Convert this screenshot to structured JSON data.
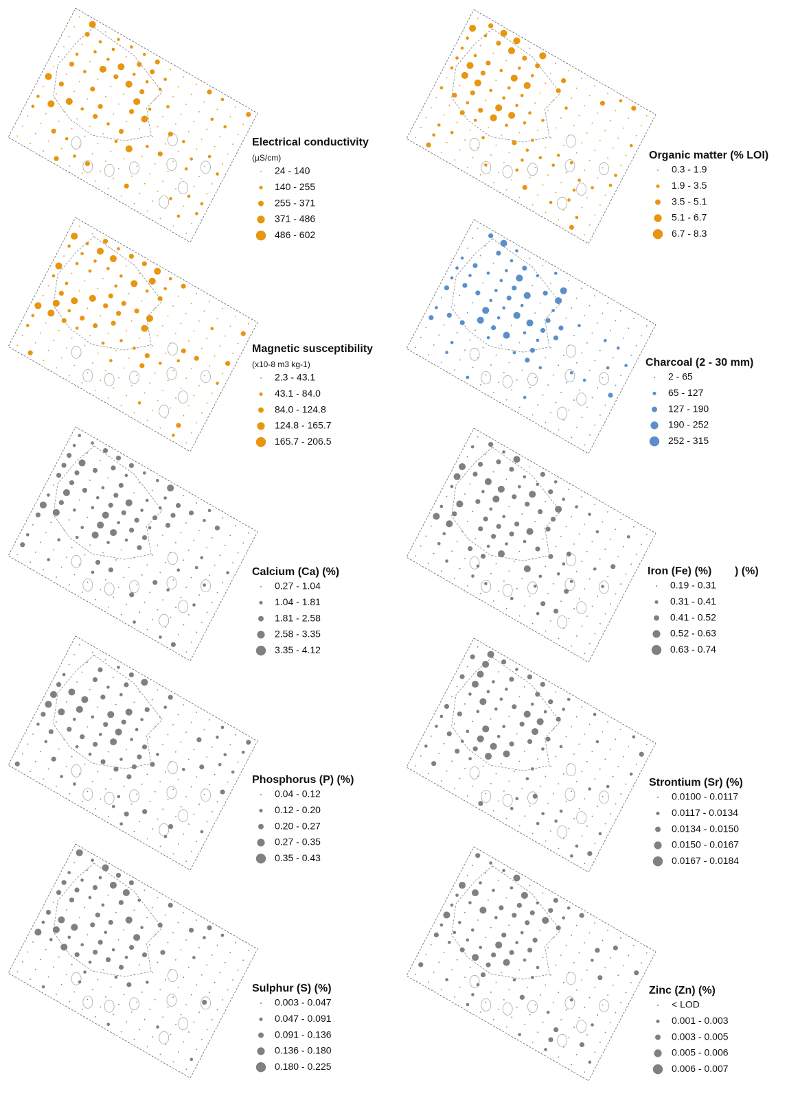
{
  "panels": [
    {
      "title": "Electrical conductivity",
      "unit": "(µS/cm)",
      "color": "#e8950f",
      "classes": [
        "24 - 140",
        "140 - 255",
        "255 - 371",
        "371 - 486",
        "486 - 602"
      ]
    },
    {
      "title": "Organic matter (% LOI)",
      "color": "#e8950f",
      "classes": [
        "0.3 - 1.9",
        "1.9 - 3.5",
        "3.5 - 5.1",
        "5.1 - 6.7",
        "6.7 - 8.3"
      ]
    },
    {
      "title": "Magnetic susceptibility",
      "unit": "(x10-8 m3 kg-1)",
      "color": "#e8950f",
      "classes": [
        "2.3 - 43.1",
        "43.1 - 84.0",
        "84.0 - 124.8",
        "124.8 - 165.7",
        "165.7 - 206.5"
      ]
    },
    {
      "title": "Charcoal (2 - 30 mm)",
      "color": "#5b8fc9",
      "classes": [
        "2 - 65",
        "65 - 127",
        "127 - 190",
        "190 - 252",
        "252 - 315"
      ]
    },
    {
      "title": "Calcium (Ca) (%)",
      "color": "#808080",
      "classes": [
        "0.27 - 1.04",
        "1.04 - 1.81",
        "1.81 - 2.58",
        "2.58 - 3.35",
        "3.35 - 4.12"
      ]
    },
    {
      "title": "Iron (Fe) (%)",
      "color": "#808080",
      "classes": [
        "0.19 - 0.31",
        "0.31 - 0.41",
        "0.41 - 0.52",
        "0.52 - 0.63",
        "0.63 - 0.74"
      ]
    },
    {
      "title": "Phosphorus (P) (%)",
      "color": "#808080",
      "classes": [
        "0.04 - 0.12",
        "0.12 - 0.20",
        "0.20 - 0.27",
        "0.27 - 0.35",
        "0.35 - 0.43"
      ]
    },
    {
      "title": "Strontium (Sr) (%)",
      "color": "#808080",
      "classes": [
        "0.0100 - 0.0117",
        "0.0117 - 0.0134",
        "0.0134 - 0.0150",
        "0.0150 - 0.0167",
        "0.0167 - 0.0184"
      ]
    },
    {
      "title": "Sulphur (S) (%)",
      "color": "#808080",
      "classes": [
        "0.003 - 0.047",
        "0.047 - 0.091",
        "0.091 - 0.136",
        "0.136 - 0.180",
        "0.180 - 0.225"
      ]
    },
    {
      "title": "Zinc (Zn) (%)",
      "color": "#808080",
      "classes": [
        "< LOD",
        "0.001 - 0.003",
        "0.003 - 0.005",
        "0.005 - 0.006",
        "0.006 - 0.007"
      ]
    }
  ],
  "overlap_text": ") (%)"
}
